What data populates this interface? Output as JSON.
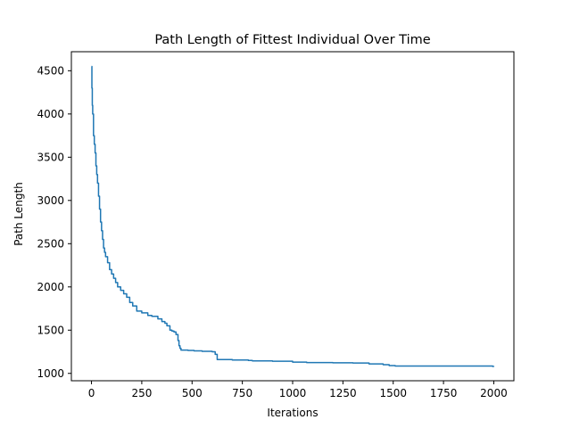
{
  "chart_data": {
    "type": "line",
    "title": "Path Length of Fittest Individual Over Time",
    "xlabel": "Iterations",
    "ylabel": "Path Length",
    "xlim": [
      -100,
      2100
    ],
    "ylim": [
      915,
      4720
    ],
    "xticks": [
      0,
      250,
      500,
      750,
      1000,
      1250,
      1500,
      1750,
      2000
    ],
    "xtick_labels": [
      "0",
      "250",
      "500",
      "750",
      "1000",
      "1250",
      "1500",
      "1750",
      "2000"
    ],
    "yticks": [
      1000,
      1500,
      2000,
      2500,
      3000,
      3500,
      4000,
      4500
    ],
    "ytick_labels": [
      "1000",
      "1500",
      "2000",
      "2500",
      "3000",
      "3500",
      "4000",
      "4500"
    ],
    "grid": false,
    "series": [
      {
        "color": "#1f77b4",
        "step": true,
        "x": [
          0,
          2,
          4,
          6,
          10,
          14,
          18,
          22,
          26,
          30,
          35,
          40,
          45,
          50,
          55,
          60,
          65,
          70,
          80,
          90,
          100,
          110,
          120,
          130,
          145,
          160,
          175,
          190,
          205,
          225,
          250,
          280,
          300,
          330,
          350,
          365,
          375,
          390,
          400,
          410,
          420,
          430,
          435,
          440,
          445,
          460,
          480,
          510,
          550,
          600,
          615,
          625,
          700,
          780,
          800,
          900,
          1000,
          1070,
          1200,
          1300,
          1380,
          1450,
          1480,
          1510,
          1600,
          1700,
          1800,
          1900,
          1960,
          1995,
          2000
        ],
        "y": [
          4550,
          4300,
          4100,
          4000,
          3750,
          3650,
          3550,
          3400,
          3300,
          3200,
          3050,
          2900,
          2750,
          2650,
          2550,
          2450,
          2400,
          2350,
          2280,
          2200,
          2150,
          2100,
          2050,
          2000,
          1960,
          1920,
          1880,
          1820,
          1780,
          1720,
          1700,
          1670,
          1660,
          1630,
          1600,
          1580,
          1550,
          1500,
          1490,
          1480,
          1450,
          1380,
          1320,
          1290,
          1270,
          1270,
          1265,
          1260,
          1255,
          1250,
          1220,
          1160,
          1155,
          1150,
          1145,
          1140,
          1130,
          1125,
          1122,
          1120,
          1110,
          1100,
          1090,
          1085,
          1085,
          1085,
          1085,
          1085,
          1085,
          1080,
          1078
        ]
      }
    ]
  }
}
